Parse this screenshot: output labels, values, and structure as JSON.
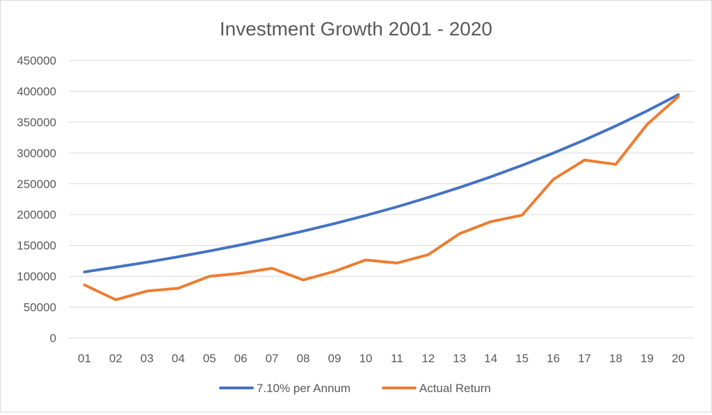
{
  "chart_data": {
    "type": "line",
    "title": "Investment Growth 2001 - 2020",
    "xlabel": "",
    "ylabel": "",
    "categories": [
      "01",
      "02",
      "03",
      "04",
      "05",
      "06",
      "07",
      "08",
      "09",
      "10",
      "11",
      "12",
      "13",
      "14",
      "15",
      "16",
      "17",
      "18",
      "19",
      "20"
    ],
    "ylim": [
      0,
      450000
    ],
    "yticks": [
      "0",
      "50000",
      "100000",
      "150000",
      "200000",
      "250000",
      "300000",
      "350000",
      "400000",
      "450000"
    ],
    "grid": true,
    "legend_position": "bottom",
    "series": [
      {
        "name": "7.10% per Annum",
        "color": "#4472c4",
        "values": [
          107100,
          114704,
          122848,
          131571,
          140912,
          150917,
          161632,
          173108,
          185399,
          198562,
          212660,
          227759,
          243930,
          261249,
          279798,
          299663,
          320940,
          343726,
          368131,
          394268
        ]
      },
      {
        "name": "Actual Return",
        "color": "#ed7d31",
        "values": [
          86000,
          62000,
          76000,
          80500,
          100000,
          105000,
          113000,
          94000,
          108000,
          126500,
          121500,
          135000,
          169000,
          188500,
          199000,
          257000,
          288500,
          281500,
          346000,
          391000
        ]
      }
    ]
  }
}
